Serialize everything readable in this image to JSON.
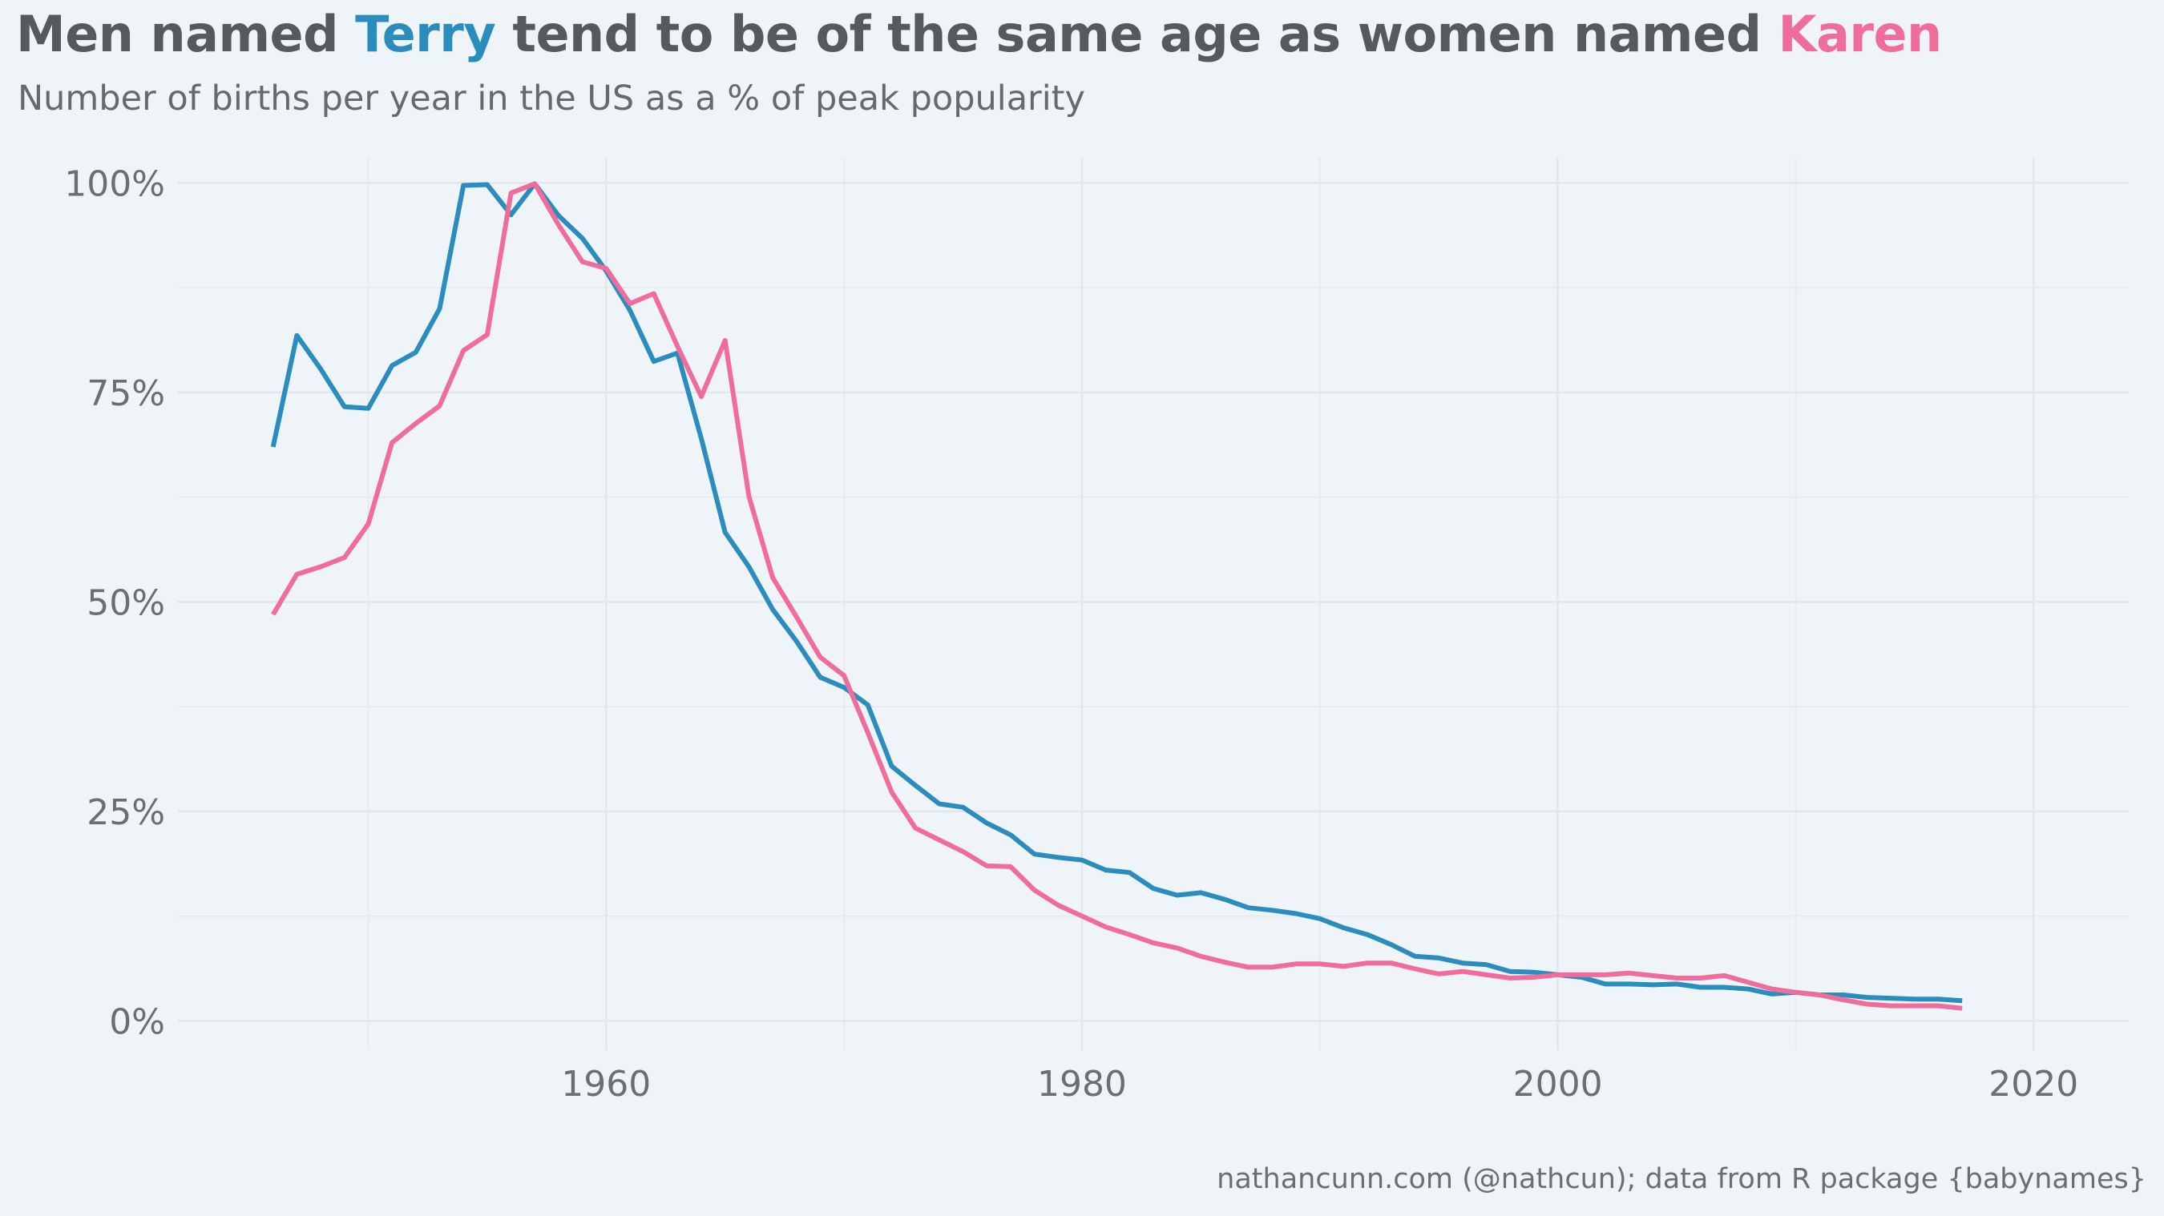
{
  "chart_data": {
    "type": "line",
    "title": {
      "prefix": "Men named ",
      "name1": "Terry",
      "middle": " tend to be of the same age as women named ",
      "name2": "Karen"
    },
    "subtitle": "Number of births per year in the US as a % of peak popularity",
    "caption": "nathancunn.com (@nathcun); data from R package {babynames}",
    "xlim": [
      1942,
      2024
    ],
    "ylim": [
      -3.5,
      103
    ],
    "x_ticks": [
      1960,
      1980,
      2000,
      2020
    ],
    "x_tick_labels": [
      "1960",
      "1980",
      "2000",
      "2020"
    ],
    "y_ticks": [
      0,
      25,
      50,
      75,
      100
    ],
    "y_tick_labels": [
      "0%",
      "25%",
      "50%",
      "75%",
      "100%"
    ],
    "grid": true,
    "legend": "none",
    "series": [
      {
        "name": "Terry",
        "color": "#2b8cbe",
        "x": [
          1946,
          1947,
          1948,
          1949,
          1950,
          1951,
          1952,
          1953,
          1954,
          1955,
          1956,
          1957,
          1958,
          1959,
          1960,
          1961,
          1962,
          1963,
          1964,
          1965,
          1966,
          1967,
          1968,
          1969,
          1970,
          1971,
          1972,
          1973,
          1974,
          1975,
          1976,
          1977,
          1978,
          1979,
          1980,
          1981,
          1982,
          1983,
          1984,
          1985,
          1986,
          1987,
          1988,
          1989,
          1990,
          1991,
          1992,
          1993,
          1994,
          1995,
          1996,
          1997,
          1998,
          1999,
          2000,
          2001,
          2002,
          2003,
          2004,
          2005,
          2006,
          2007,
          2008,
          2009,
          2010,
          2011,
          2012,
          2013,
          2014,
          2015,
          2016,
          2017
        ],
        "y": [
          68.5,
          81.8,
          77.8,
          73.3,
          73.1,
          78.2,
          79.8,
          85,
          99.7,
          99.8,
          96.2,
          99.9,
          96.1,
          93.4,
          89.5,
          84.8,
          78.7,
          79.7,
          69.5,
          58.3,
          54.2,
          49.1,
          45.3,
          41,
          39.8,
          37.7,
          30.4,
          28.1,
          25.9,
          25.5,
          23.6,
          22.2,
          19.9,
          19.5,
          19.2,
          18,
          17.7,
          15.8,
          15,
          15.3,
          14.5,
          13.5,
          13.2,
          12.8,
          12.2,
          11.1,
          10.3,
          9.1,
          7.7,
          7.5,
          6.9,
          6.7,
          5.9,
          5.8,
          5.5,
          5.2,
          4.4,
          4.4,
          4.3,
          4.4,
          4,
          4,
          3.8,
          3.2,
          3.4,
          3.1,
          3.1,
          2.8,
          2.7,
          2.6,
          2.6,
          2.4
        ]
      },
      {
        "name": "Karen",
        "color": "#f06c9b",
        "x": [
          1946,
          1947,
          1948,
          1949,
          1950,
          1951,
          1952,
          1953,
          1954,
          1955,
          1956,
          1957,
          1958,
          1959,
          1960,
          1961,
          1962,
          1963,
          1964,
          1965,
          1966,
          1967,
          1968,
          1969,
          1970,
          1971,
          1972,
          1973,
          1974,
          1975,
          1976,
          1977,
          1978,
          1979,
          1980,
          1981,
          1982,
          1983,
          1984,
          1985,
          1986,
          1987,
          1988,
          1989,
          1990,
          1991,
          1992,
          1993,
          1994,
          1995,
          1996,
          1997,
          1998,
          1999,
          2000,
          2001,
          2002,
          2003,
          2004,
          2005,
          2006,
          2007,
          2008,
          2009,
          2010,
          2011,
          2012,
          2013,
          2014,
          2015,
          2016,
          2017
        ],
        "y": [
          48.5,
          53.3,
          54.2,
          55.3,
          59.3,
          69,
          71.3,
          73.4,
          80,
          81.9,
          98.8,
          99.9,
          95,
          90.6,
          89.8,
          85.6,
          86.8,
          80.5,
          74.5,
          81.2,
          62.6,
          52.9,
          48.2,
          43.4,
          41.2,
          34.4,
          27.3,
          23,
          21.6,
          20.2,
          18.5,
          18.4,
          15.6,
          13.8,
          12.5,
          11.2,
          10.3,
          9.3,
          8.7,
          7.7,
          7,
          6.4,
          6.4,
          6.8,
          6.8,
          6.5,
          6.9,
          6.9,
          6.2,
          5.6,
          5.9,
          5.5,
          5.1,
          5.2,
          5.5,
          5.5,
          5.5,
          5.7,
          5.4,
          5.1,
          5.1,
          5.4,
          4.6,
          3.8,
          3.4,
          3.1,
          2.5,
          2,
          1.8,
          1.8,
          1.8,
          1.5
        ]
      }
    ]
  }
}
